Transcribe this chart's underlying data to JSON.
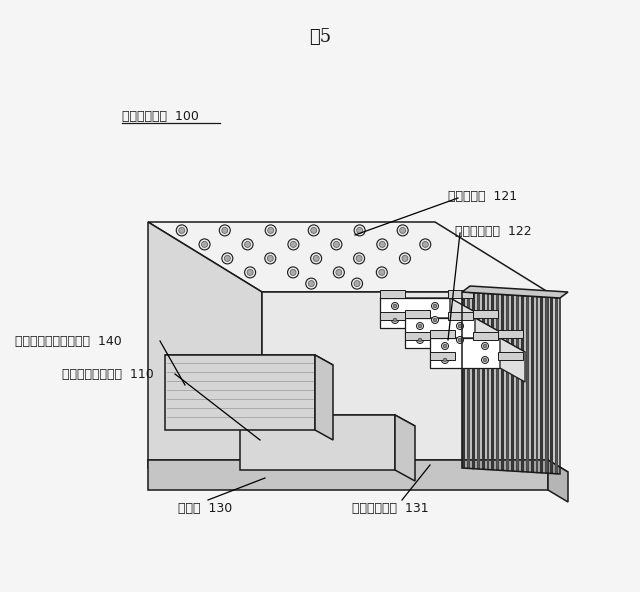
{
  "title": "図5",
  "title_fontsize": 13,
  "bg_color": "#f5f5f5",
  "line_color": "#1a1a1a",
  "line_width": 1.1,
  "label_fontsize": 9,
  "fig_width": 6.4,
  "fig_height": 5.92,
  "labels": {
    "denryoku": "電力変換装置  100",
    "kinzoku": "金属積層板  121",
    "koryu": "交流側金属板  122",
    "condensar": "コンデンサモジュール  140",
    "power": "パワーモジュール  110",
    "reikya": "冷却器  130",
    "cover": "冷却器カバー  131"
  }
}
